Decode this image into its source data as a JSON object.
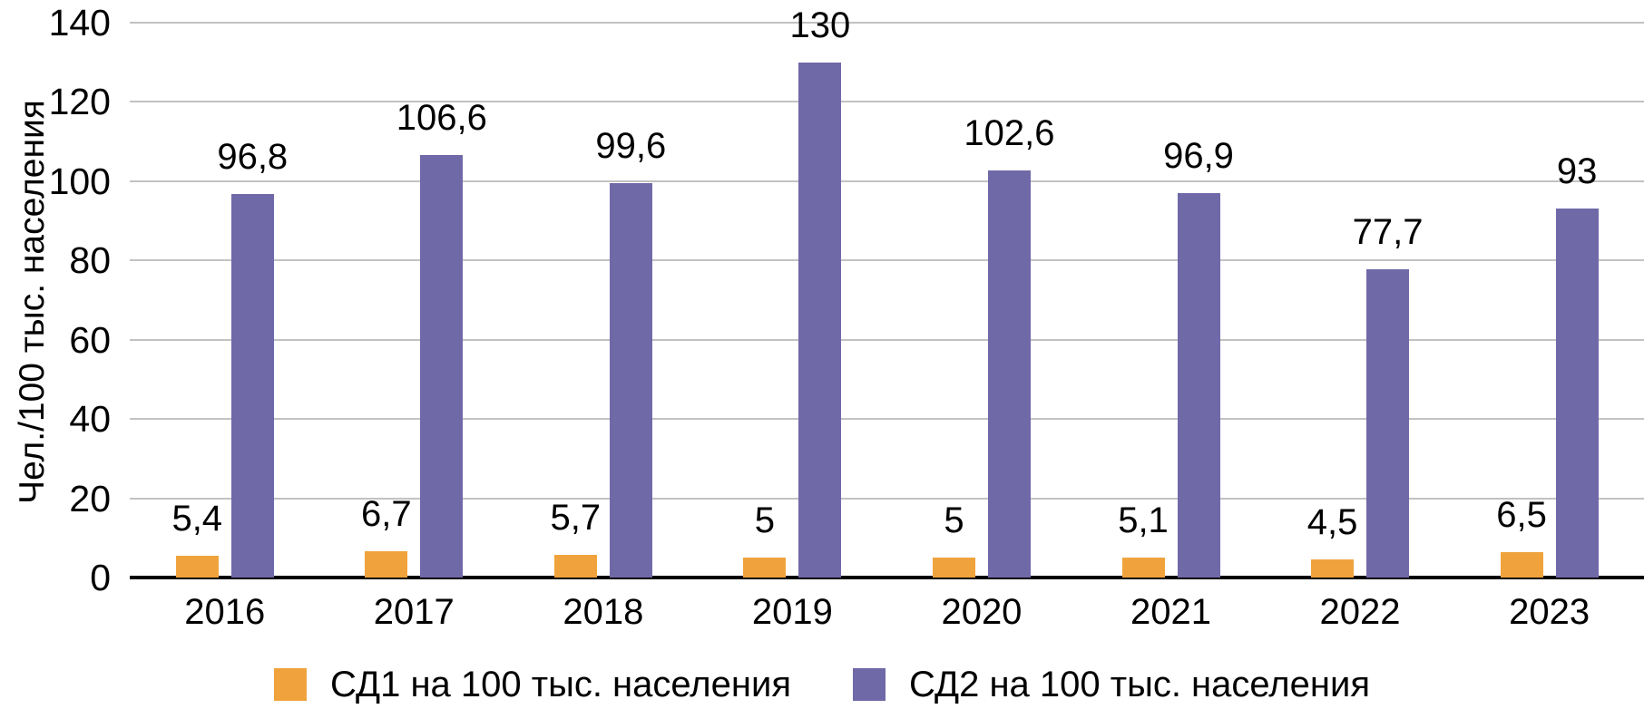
{
  "chart_data": {
    "type": "bar",
    "title": "",
    "ylabel": "Чел./100 тыс. населения",
    "xlabel": "",
    "categories": [
      "2016",
      "2017",
      "2018",
      "2019",
      "2020",
      "2021",
      "2022",
      "2023"
    ],
    "series": [
      {
        "name": "СД1 на 100 тыс. населения",
        "color": "#F0A33C",
        "values": [
          5.4,
          6.7,
          5.7,
          5,
          5,
          5.1,
          4.5,
          6.5
        ],
        "labels": [
          "5,4",
          "6,7",
          "5,7",
          "5",
          "5",
          "5,1",
          "4,5",
          "6,5"
        ]
      },
      {
        "name": "СД2 на 100 тыс. населения",
        "color": "#7069A8",
        "values": [
          96.8,
          106.6,
          99.6,
          130,
          102.6,
          96.9,
          77.7,
          93
        ],
        "labels": [
          "96,8",
          "106,6",
          "99,6",
          "130",
          "102,6",
          "96,9",
          "77,7",
          "93"
        ]
      }
    ],
    "ylim": [
      0,
      140
    ],
    "yticks": [
      0,
      20,
      40,
      60,
      80,
      100,
      120,
      140
    ],
    "grid": true,
    "legend_position": "bottom",
    "decimal_separator": ","
  },
  "colors": {
    "background": "#ffffff",
    "gridline": "#c2c2c2",
    "axis_line": "#000000",
    "text": "#000000"
  }
}
